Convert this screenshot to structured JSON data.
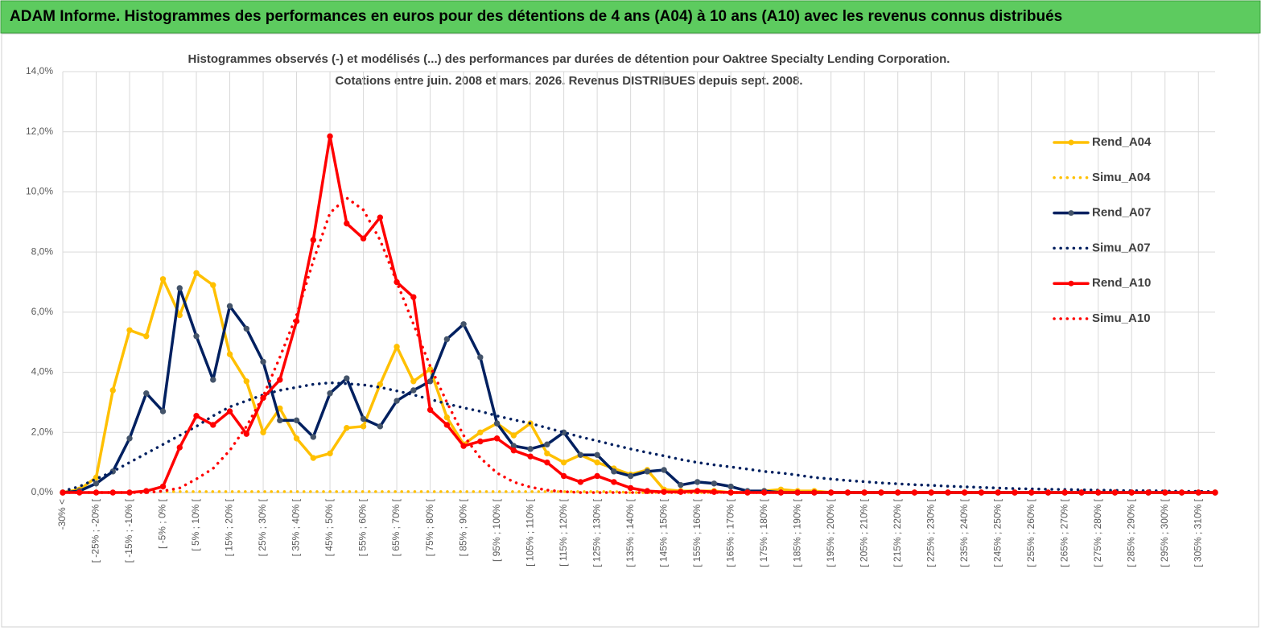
{
  "header": {
    "title": "ADAM Informe. Histogrammes des performances en euros pour des détentions de 4 ans (A04) à 10 ans (A10) avec les revenus connus distribués"
  },
  "chart_data": {
    "type": "line",
    "title": "Histogrammes observés (-) et modélisés (...)  des performances par durées de détention pour Oaktree Specialty Lending Corporation.",
    "subtitle": "Cotations entre juin. 2008 et mars. 2026.  Revenus DISTRIBUES depuis sept. 2008.",
    "categories": [
      "-30% <",
      null,
      "[ -25% ; -20% [",
      null,
      "[ -15% ; -10% [",
      null,
      "[ -5% ; 0% [",
      null,
      "[ 5% ; 10% [",
      null,
      "[ 15% ; 20% [",
      null,
      "[ 25% ; 30% [",
      null,
      "[ 35% ; 40% [",
      null,
      "[ 45% ; 50% [",
      null,
      "[ 55% ; 60% [",
      null,
      "[ 65% ; 70% [",
      null,
      "[ 75% ; 80% [",
      null,
      "[ 85% ; 90% [",
      null,
      "[ 95% ; 100% [",
      null,
      "[ 105% ; 110% [",
      null,
      "[ 115% ; 120% [",
      null,
      "[ 125% ; 130% [",
      null,
      "[ 135% ; 140% [",
      null,
      "[ 145% ; 150% [",
      null,
      "[ 155% ; 160% [",
      null,
      "[ 165% ; 170% [",
      null,
      "[ 175% ; 180% [",
      null,
      "[ 185% ; 190% [",
      null,
      "[ 195% ; 200% [",
      null,
      "[ 205% ; 210% [",
      null,
      "[ 215% ; 220% [",
      null,
      "[ 225% ; 230% [",
      null,
      "[ 235% ; 240% [",
      null,
      "[ 245% ; 250% [",
      null,
      "[ 255% ; 260% [",
      null,
      "[ 265% ; 270% [",
      null,
      "[ 275% ; 280% [",
      null,
      "[ 285% ; 290% [",
      null,
      "[ 295% ; 300% [",
      null,
      "[ 305% ; 310% [",
      null
    ],
    "ylim": [
      0,
      14
    ],
    "yticks": [
      {
        "value": 0,
        "label": "0,0%"
      },
      {
        "value": 2,
        "label": "2,0%"
      },
      {
        "value": 4,
        "label": "4,0%"
      },
      {
        "value": 6,
        "label": "6,0%"
      },
      {
        "value": 8,
        "label": "8,0%"
      },
      {
        "value": 10,
        "label": "10,0%"
      },
      {
        "value": 12,
        "label": "12,0%"
      },
      {
        "value": 14,
        "label": "14,0%"
      }
    ],
    "grid": true,
    "legend": "right",
    "series": [
      {
        "name": "Rend_A04",
        "color": "#ffc000",
        "style": "solid",
        "markers": true,
        "marker_color": "#ffc000",
        "values": [
          0,
          0.1,
          0.5,
          3.4,
          5.4,
          5.2,
          7.1,
          5.9,
          7.3,
          6.9,
          4.6,
          3.7,
          2.0,
          2.8,
          1.8,
          1.15,
          1.3,
          2.15,
          2.2,
          3.6,
          4.85,
          3.7,
          4.1,
          2.5,
          1.6,
          2.0,
          2.3,
          1.9,
          2.3,
          1.3,
          1.0,
          1.25,
          1.0,
          0.8,
          0.6,
          0.75,
          0.1,
          0.05,
          0.05,
          0.05,
          0,
          0,
          0.05,
          0.1,
          0.05,
          0.05,
          0,
          0,
          0,
          0,
          0,
          0,
          0,
          0,
          0,
          0,
          0,
          0,
          0,
          0,
          0,
          0,
          0,
          0,
          0,
          0,
          0,
          0,
          0,
          0
        ]
      },
      {
        "name": "Simu_A04",
        "color": "#ffc000",
        "style": "dotted",
        "markers": false,
        "values": [
          0,
          0,
          0,
          0,
          0,
          0.03,
          0.03,
          0.03,
          0.03,
          0.03,
          0.03,
          0.03,
          0.03,
          0.03,
          0.03,
          0.03,
          0.03,
          0.03,
          0.03,
          0.03,
          0.03,
          0.03,
          0.03,
          0.03,
          0.03,
          0.03,
          0.03,
          0.03,
          0.03,
          0.03,
          0.03,
          0.03,
          0.03,
          0.03,
          0,
          0,
          0,
          0,
          0,
          0,
          0,
          0,
          0,
          0,
          0,
          0,
          0,
          0,
          0,
          0,
          0,
          0,
          0,
          0,
          0,
          0,
          0,
          0,
          0,
          0,
          0,
          0,
          0,
          0,
          0,
          0,
          0,
          0,
          0,
          0
        ]
      },
      {
        "name": "Rend_A07",
        "color": "#002060",
        "style": "solid",
        "markers": true,
        "marker_color": "#44546a",
        "values": [
          0,
          0.05,
          0.3,
          0.7,
          1.8,
          3.3,
          2.7,
          6.8,
          5.2,
          3.75,
          6.2,
          5.45,
          4.35,
          2.4,
          2.4,
          1.85,
          3.3,
          3.8,
          2.45,
          2.2,
          3.05,
          3.4,
          3.7,
          5.1,
          5.6,
          4.5,
          2.3,
          1.55,
          1.45,
          1.6,
          2.0,
          1.25,
          1.25,
          0.7,
          0.55,
          0.7,
          0.75,
          0.25,
          0.35,
          0.3,
          0.2,
          0.05,
          0.05,
          0,
          0,
          0,
          0,
          0,
          0,
          0,
          0,
          0,
          0,
          0,
          0,
          0,
          0,
          0,
          0,
          0,
          0,
          0,
          0,
          0,
          0,
          0,
          0,
          0,
          0,
          0
        ]
      },
      {
        "name": "Simu_A07",
        "color": "#002060",
        "style": "dotted",
        "markers": false,
        "values": [
          0.05,
          0.2,
          0.45,
          0.7,
          1.0,
          1.3,
          1.6,
          1.9,
          2.2,
          2.55,
          2.85,
          3.05,
          3.25,
          3.4,
          3.5,
          3.6,
          3.65,
          3.62,
          3.58,
          3.5,
          3.38,
          3.25,
          3.1,
          2.95,
          2.82,
          2.7,
          2.55,
          2.42,
          2.3,
          2.15,
          2.0,
          1.85,
          1.72,
          1.58,
          1.45,
          1.33,
          1.22,
          1.1,
          1.0,
          0.92,
          0.85,
          0.78,
          0.7,
          0.65,
          0.58,
          0.5,
          0.45,
          0.4,
          0.36,
          0.32,
          0.29,
          0.26,
          0.24,
          0.21,
          0.19,
          0.17,
          0.15,
          0.13,
          0.12,
          0.11,
          0.1,
          0.09,
          0.08,
          0.07,
          0.06,
          0.06,
          0.05,
          0.04,
          0.04,
          0.03
        ]
      },
      {
        "name": "Rend_A10",
        "color": "#ff0000",
        "style": "solid",
        "markers": true,
        "marker_color": "#ff0000",
        "values": [
          0,
          0,
          0,
          0,
          0,
          0.05,
          0.2,
          1.5,
          2.55,
          2.25,
          2.7,
          1.95,
          3.15,
          3.75,
          5.7,
          8.4,
          11.85,
          8.95,
          8.45,
          9.15,
          7.0,
          6.5,
          2.75,
          2.25,
          1.55,
          1.7,
          1.8,
          1.4,
          1.2,
          1.0,
          0.55,
          0.35,
          0.55,
          0.35,
          0.15,
          0.05,
          0.02,
          0.02,
          0.05,
          0.02,
          0,
          0,
          0,
          0,
          0,
          0,
          0,
          0,
          0,
          0,
          0,
          0,
          0,
          0,
          0,
          0,
          0,
          0,
          0,
          0,
          0,
          0,
          0,
          0,
          0,
          0,
          0,
          0,
          0,
          0
        ]
      },
      {
        "name": "Simu_A10",
        "color": "#ff0000",
        "style": "dotted",
        "markers": false,
        "values": [
          0,
          0,
          0,
          0,
          0,
          0,
          0.05,
          0.15,
          0.45,
          0.8,
          1.4,
          2.2,
          3.2,
          4.5,
          5.9,
          7.7,
          9.3,
          9.8,
          9.4,
          8.4,
          7.0,
          5.6,
          4.2,
          3.0,
          1.9,
          1.15,
          0.65,
          0.35,
          0.18,
          0.08,
          0.03,
          0,
          0,
          0,
          0,
          0,
          0,
          0,
          0,
          0,
          0,
          0,
          0,
          0,
          0,
          0,
          0,
          0,
          0,
          0,
          0,
          0,
          0,
          0,
          0,
          0,
          0,
          0,
          0,
          0,
          0,
          0,
          0,
          0,
          0,
          0,
          0,
          0,
          0,
          0
        ]
      }
    ]
  }
}
